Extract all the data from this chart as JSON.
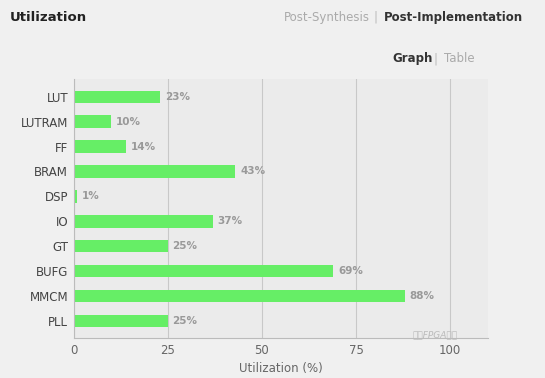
{
  "categories": [
    "LUT",
    "LUTRAM",
    "FF",
    "BRAM",
    "DSP",
    "IO",
    "GT",
    "BUFG",
    "MMCM",
    "PLL"
  ],
  "values": [
    23,
    10,
    14,
    43,
    1,
    37,
    25,
    69,
    88,
    25
  ],
  "labels": [
    "23%",
    "10%",
    "14%",
    "43%",
    "1%",
    "37%",
    "25%",
    "69%",
    "88%",
    "25%"
  ],
  "bar_color": "#66ee66",
  "figure_bg": "#f0f0f0",
  "header_bg": "#e8e8e8",
  "plot_bg": "#ebebeb",
  "white_bg": "#ffffff",
  "title": "Utilization",
  "subtitle_left": "Post-Synthesis",
  "pipe": "|",
  "subtitle_right": "Post-Implementation",
  "tab_graph": "Graph",
  "tab_table": "Table",
  "xlabel": "Utilization (%)",
  "xlim": [
    0,
    110
  ],
  "xticks": [
    0,
    25,
    50,
    75,
    100
  ],
  "xtick_labels": [
    "0",
    "25",
    "50",
    "75",
    "100"
  ],
  "grid_color": "#c8c8c8",
  "label_color": "#999999",
  "yticklabel_color": "#444444",
  "xtick_color": "#666666",
  "title_color": "#222222",
  "subtitle_left_color": "#aaaaaa",
  "pipe_color": "#bbbbbb",
  "subtitle_right_color": "#333333",
  "tab_graph_color": "#333333",
  "tab_table_color": "#aaaaaa",
  "watermark": "国产FPGA之家",
  "watermark_color": "#bbbbbb",
  "separator_color": "#cccccc"
}
